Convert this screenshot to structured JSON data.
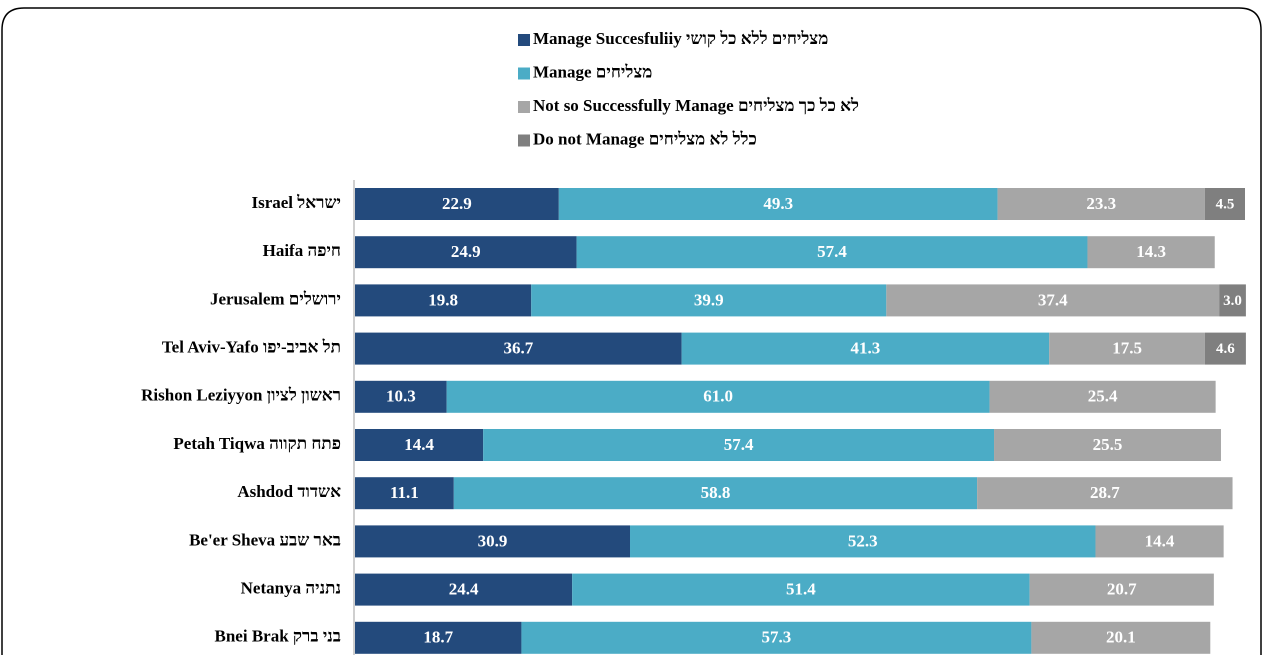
{
  "chart_data": {
    "type": "stacked-bar",
    "orientation": "horizontal",
    "categories": [
      "Israel ישראל",
      "Haifa חיפה",
      "Jerusalem ירושלים",
      "Tel Aviv-Yafo תל אביב-יפו",
      "Rishon Leziyyon ראשון לציון",
      "Petah Tiqwa פתח תקווה",
      "Ashdod אשדוד",
      "Be'er Sheva באר שבע",
      "Netanya נתניה",
      "Bnei Brak בני ברק"
    ],
    "series": [
      {
        "name": "Manage Succesfuliiy מצליחים ללא כל קושי",
        "color": "#234a7c",
        "values": [
          22.9,
          24.9,
          19.8,
          36.7,
          10.3,
          14.4,
          11.1,
          30.9,
          24.4,
          18.7
        ],
        "value_labels": [
          "22.9",
          "24.9",
          "19.8",
          "36.7",
          "10.3",
          "14.4",
          "11.1",
          "30.9",
          "24.4",
          "18.7"
        ]
      },
      {
        "name": "Manage  מצליחים",
        "color": "#4bacc6",
        "values": [
          49.3,
          57.4,
          39.9,
          41.3,
          61.0,
          57.4,
          58.8,
          52.3,
          51.4,
          57.3
        ],
        "value_labels": [
          "49.3",
          "57.4",
          "39.9",
          "41.3",
          "61.0",
          "57.4",
          "58.8",
          "52.3",
          "51.4",
          "57.3"
        ]
      },
      {
        "name": "Not so Successfully Manage לא כל כך מצליחים",
        "color": "#a6a6a6",
        "values": [
          23.3,
          14.3,
          37.4,
          17.5,
          25.4,
          25.5,
          28.7,
          14.4,
          20.7,
          20.1
        ],
        "value_labels": [
          "23.3",
          "14.3",
          "37.4",
          "17.5",
          "25.4",
          "25.5",
          "28.7",
          "14.4",
          "20.7",
          "20.1"
        ]
      },
      {
        "name": "Do not Manage  כלל לא מצליחים",
        "color": "#7f7f7f",
        "values": [
          4.5,
          null,
          3.0,
          4.6,
          null,
          null,
          null,
          null,
          null,
          null
        ],
        "value_labels": [
          "4.5",
          null,
          "3.0",
          "4.6",
          null,
          null,
          null,
          null,
          null,
          null
        ]
      }
    ],
    "xlim": [
      0,
      100
    ]
  }
}
